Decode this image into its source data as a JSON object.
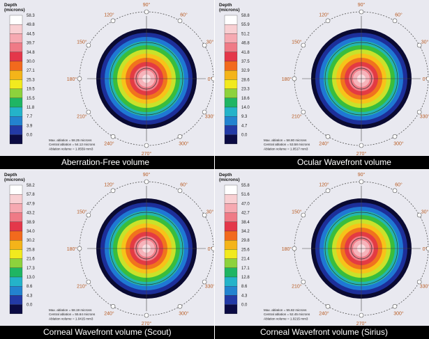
{
  "scale_header": "Depth\n(microns)",
  "panels": [
    {
      "caption": "Aberration-Free volume",
      "scale_values": [
        "58.3",
        "49.8",
        "44.5",
        "39.7",
        "34.8",
        "30.0",
        "27.1",
        "25.3",
        "19.5",
        "15.5",
        "11.8",
        "7.7",
        "3.9",
        "0.0"
      ],
      "info_lines": [
        "Max. ablation = 58.25 microns",
        "Central ablation = 54.12 microns",
        "Ablation volume = 1.0559 mm3"
      ],
      "angles": [
        "90°",
        "60°",
        "30°",
        "0°",
        "330°",
        "300°",
        "270°",
        "240°",
        "210°",
        "180°",
        "150°",
        "120°"
      ]
    },
    {
      "caption": "Ocular Wavefront volume",
      "scale_values": [
        "58.8",
        "55.9",
        "51.2",
        "46.8",
        "41.8",
        "37.5",
        "32.9",
        "28.6",
        "23.3",
        "18.6",
        "14.0",
        "9.3",
        "4.7",
        "0.0"
      ],
      "info_lines": [
        "Max. ablation = 58.80 microns",
        "Central ablation = 53.58 microns",
        "Ablation volume = 1.0517 mm3"
      ],
      "angles": [
        "90°",
        "60°",
        "30°",
        "0°",
        "330°",
        "300°",
        "270°",
        "240°",
        "210°",
        "180°",
        "150°",
        "120°"
      ]
    },
    {
      "caption": "Corneal Wavefront volume (Scout)",
      "scale_values": [
        "58.2",
        "57.8",
        "47.9",
        "43.2",
        "38.9",
        "34.0",
        "30.2",
        "25.8",
        "21.6",
        "17.3",
        "13.0",
        "8.6",
        "4.3",
        "0.0"
      ],
      "info_lines": [
        "Max. ablation = 58.19 microns",
        "Central ablation = 55.64 microns",
        "Ablation volume = 1.0415 mm3"
      ],
      "angles": [
        "90°",
        "60°",
        "30°",
        "0°",
        "330°",
        "300°",
        "270°",
        "240°",
        "210°",
        "180°",
        "150°",
        "120°"
      ]
    },
    {
      "caption": "Corneal Wavefront volume (Sirius)",
      "scale_values": [
        "55.8",
        "51.6",
        "47.0",
        "42.7",
        "38.4",
        "34.2",
        "29.8",
        "25.6",
        "21.4",
        "17.1",
        "12.8",
        "8.6",
        "4.3",
        "0.0"
      ],
      "info_lines": [
        "Max. ablation = 55.82 microns",
        "Central ablation = 52.45 microns",
        "Ablation volume = 1.0215 mm3"
      ],
      "angles": [
        "90°",
        "60°",
        "30°",
        "0°",
        "330°",
        "300°",
        "270°",
        "240°",
        "210°",
        "180°",
        "150°",
        "120°"
      ]
    }
  ],
  "scale_colors": [
    "#ffffff",
    "#f8cfd2",
    "#f6a9b1",
    "#ef7a86",
    "#e4374a",
    "#f26a1d",
    "#f4b419",
    "#f2ea1e",
    "#8dd23c",
    "#1fb563",
    "#24b3c9",
    "#2383cf",
    "#233aa5",
    "#0b0b43"
  ],
  "ring_colors": [
    "#0a0a32",
    "#1d2f9a",
    "#1f78d4",
    "#22b7b0",
    "#39bd3d",
    "#c9e22a",
    "#f7c319",
    "#f1731d",
    "#e33b43",
    "#f07d88",
    "#f6b3ba",
    "#fadde0"
  ],
  "angle_color": "#b85a20"
}
